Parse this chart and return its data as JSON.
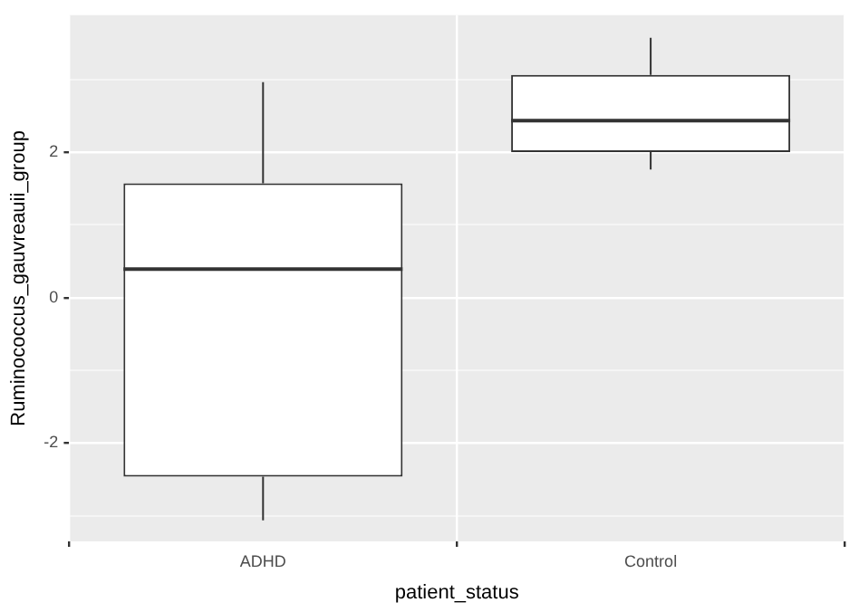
{
  "chart_data": {
    "type": "box",
    "xlabel": "patient_status",
    "ylabel": "Ruminococcus_gauvreauii_group",
    "categories": [
      "ADHD",
      "Control"
    ],
    "boxes": [
      {
        "low": -3.06,
        "q1": -2.46,
        "median": 0.39,
        "q3": 1.57,
        "high": 2.96
      },
      {
        "low": 1.76,
        "q1": 2.0,
        "median": 2.43,
        "q3": 3.06,
        "high": 3.57
      }
    ],
    "ylim": [
      -3.35,
      3.88
    ],
    "yticks": [
      {
        "value": -3,
        "label": null
      },
      -2,
      {
        "value": -1,
        "label": null
      },
      0,
      {
        "value": 1,
        "label": null
      },
      2,
      {
        "value": 3,
        "label": null
      }
    ],
    "grid": true,
    "legend": false
  }
}
